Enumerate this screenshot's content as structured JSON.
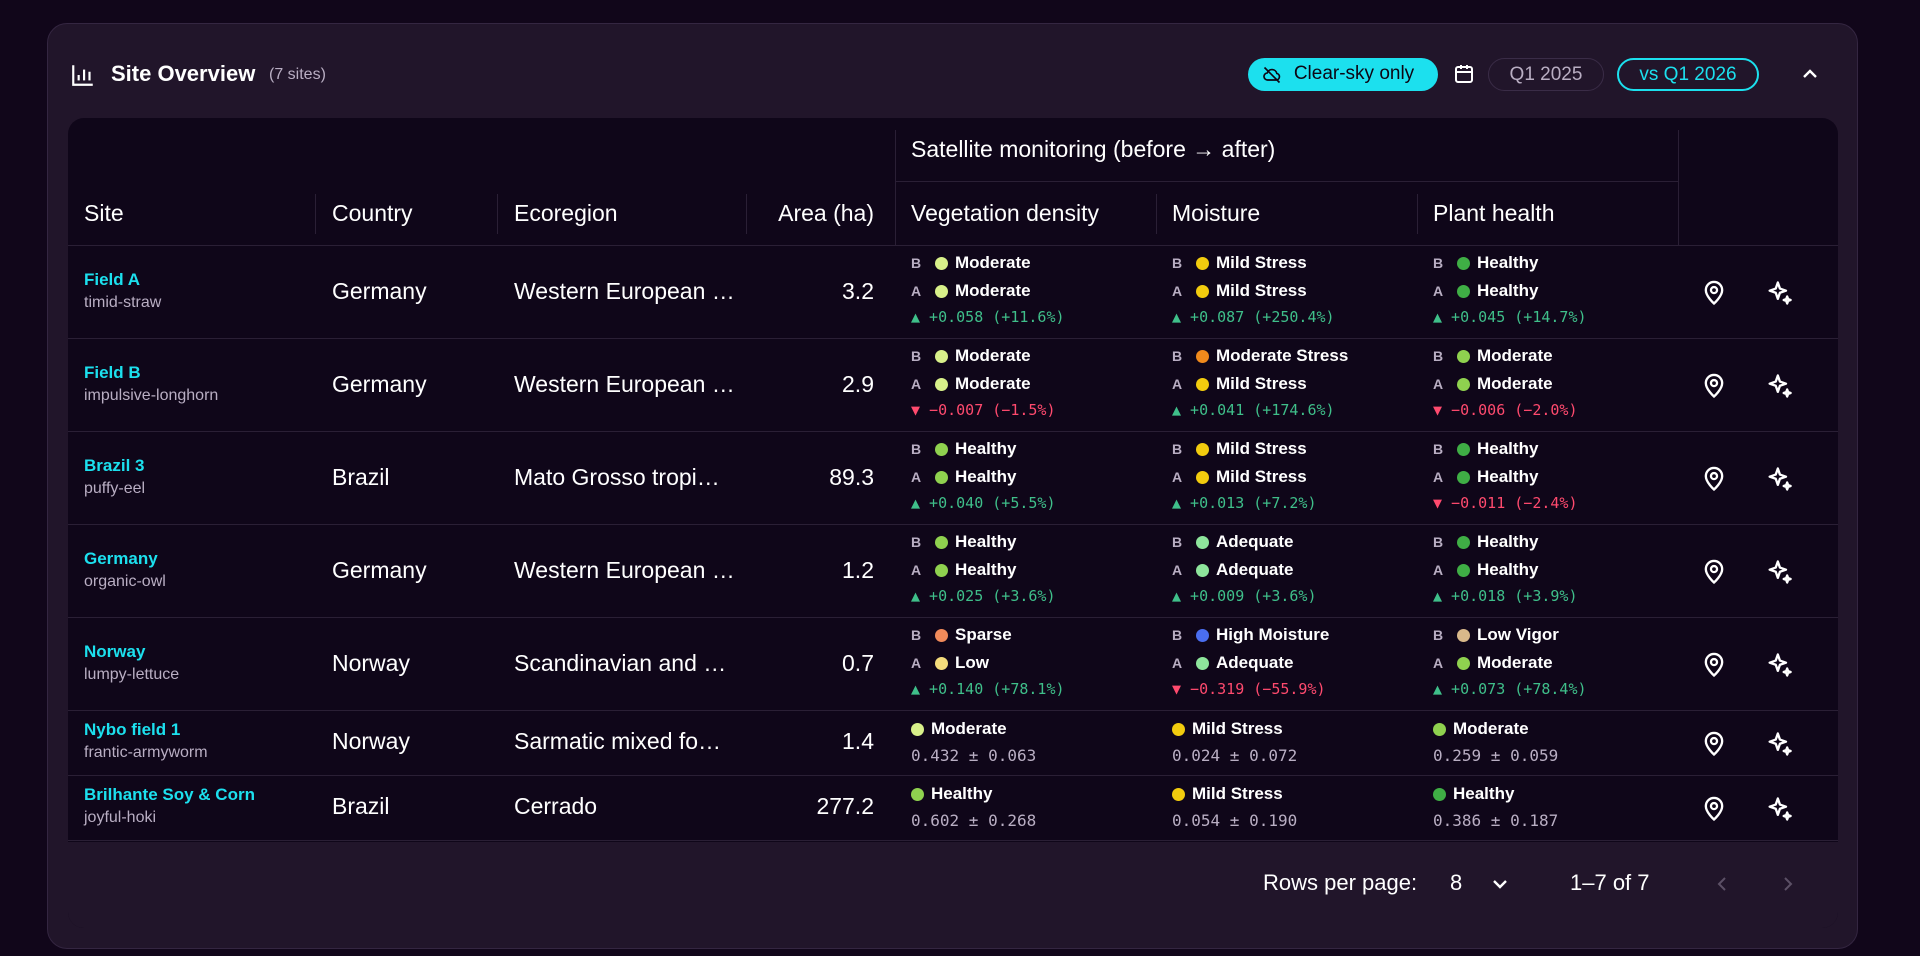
{
  "header": {
    "title": "Site Overview",
    "count": "(7 sites)",
    "clear_sky": "Clear-sky only",
    "period": "Q1 2025",
    "compare": "vs Q1 2026"
  },
  "table": {
    "group_label": "Satellite monitoring (before → after)",
    "columns": {
      "site": "Site",
      "country": "Country",
      "ecoregion": "Ecoregion",
      "area": "Area (ha)",
      "veg": "Vegetation density",
      "moisture": "Moisture",
      "health": "Plant health"
    },
    "rows": [
      {
        "name": "Field A",
        "slug": "timid-straw",
        "country": "Germany",
        "ecoregion": "Western European …",
        "area": "3.2",
        "veg": {
          "b": "Moderate",
          "a": "Moderate",
          "delta": "▲ +0.058 (+11.6%)"
        },
        "moist": {
          "b": "Mild Stress",
          "a": "Mild Stress",
          "delta": "▲ +0.087 (+250.4%)"
        },
        "health": {
          "b": "Healthy",
          "a": "Healthy",
          "delta": "▲ +0.045 (+14.7%)"
        }
      },
      {
        "name": "Field B",
        "slug": "impulsive-longhorn",
        "country": "Germany",
        "ecoregion": "Western European …",
        "area": "2.9",
        "veg": {
          "b": "Moderate",
          "a": "Moderate",
          "delta": "▼ −0.007 (−1.5%)"
        },
        "moist": {
          "b": "Moderate Stress",
          "a": "Mild Stress",
          "delta": "▲ +0.041 (+174.6%)"
        },
        "health": {
          "b": "Moderate",
          "a": "Moderate",
          "delta": "▼ −0.006 (−2.0%)"
        }
      },
      {
        "name": "Brazil 3",
        "slug": "puffy-eel",
        "country": "Brazil",
        "ecoregion": "Mato Grosso tropi…",
        "area": "89.3",
        "veg": {
          "b": "Healthy",
          "a": "Healthy",
          "delta": "▲ +0.040 (+5.5%)"
        },
        "moist": {
          "b": "Mild Stress",
          "a": "Mild Stress",
          "delta": "▲ +0.013 (+7.2%)"
        },
        "health": {
          "b": "Healthy",
          "a": "Healthy",
          "delta": "▼ −0.011 (−2.4%)"
        }
      },
      {
        "name": "Germany",
        "slug": "organic-owl",
        "country": "Germany",
        "ecoregion": "Western European …",
        "area": "1.2",
        "veg": {
          "b": "Healthy",
          "a": "Healthy",
          "delta": "▲ +0.025 (+3.6%)"
        },
        "moist": {
          "b": "Adequate",
          "a": "Adequate",
          "delta": "▲ +0.009 (+3.6%)"
        },
        "health": {
          "b": "Healthy",
          "a": "Healthy",
          "delta": "▲ +0.018 (+3.9%)"
        }
      },
      {
        "name": "Norway",
        "slug": "lumpy-lettuce",
        "country": "Norway",
        "ecoregion": "Scandinavian and …",
        "area": "0.7",
        "veg": {
          "b": "Sparse",
          "a": "Low",
          "delta": "▲ +0.140 (+78.1%)"
        },
        "moist": {
          "b": "High Moisture",
          "a": "Adequate",
          "delta": "▼ −0.319 (−55.9%)"
        },
        "health": {
          "b": "Low Vigor",
          "a": "Moderate",
          "delta": "▲ +0.073 (+78.4%)"
        }
      },
      {
        "name": "Nybo field 1",
        "slug": "frantic-armyworm",
        "country": "Norway",
        "ecoregion": "Sarmatic mixed fo…",
        "area": "1.4",
        "veg": {
          "s": "Moderate",
          "v": "0.432 ± 0.063"
        },
        "moist": {
          "s": "Mild Stress",
          "v": "0.024 ± 0.072"
        },
        "health": {
          "s": "Moderate",
          "v": "0.259 ± 0.059"
        }
      },
      {
        "name": "Brilhante Soy & Corn",
        "slug": "joyful-hoki",
        "country": "Brazil",
        "ecoregion": "Cerrado",
        "area": "277.2",
        "veg": {
          "s": "Healthy",
          "v": "0.602 ± 0.268"
        },
        "moist": {
          "s": "Mild Stress",
          "v": "0.054 ± 0.190"
        },
        "health": {
          "s": "Healthy",
          "v": "0.386 ± 0.187"
        }
      }
    ],
    "markers": {
      "before": "B",
      "after": "A"
    }
  },
  "footer": {
    "rows_per_page_label": "Rows per page:",
    "rows_per_page": "8",
    "range": "1–7 of 7"
  },
  "colors": {
    "accent": "#1ce0ee",
    "moderate": "#d8f08a",
    "healthy": "#8fd14f",
    "healthy_dark": "#3fae45",
    "mild_stress": "#f2cc0e",
    "moderate_stress": "#f08a1c",
    "adequate": "#8ee59c",
    "sparse": "#f08a5a",
    "low": "#f4dc7c",
    "high_moisture": "#4a6ef0",
    "low_vigor": "#d8b88a",
    "up": "#3fbf8a",
    "down": "#ff4a6e"
  },
  "icons": {
    "header": "bar-chart-icon",
    "clear_sky": "cloud-off-icon",
    "calendar": "calendar-icon",
    "collapse": "chevron-up-icon",
    "row_locate": "map-pin-icon",
    "row_ai": "sparkles-icon",
    "rpp": "chevron-down-icon",
    "prev": "chevron-left-icon",
    "next": "chevron-right-icon"
  }
}
